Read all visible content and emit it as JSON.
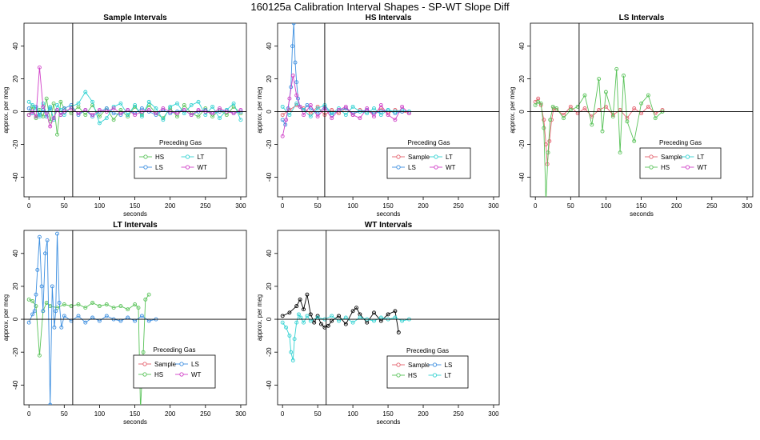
{
  "suptitle": "160125a   Calibration Interval Shapes - SP-WT Slope Diff",
  "colors": {
    "Sample": "#e4606d",
    "HS": "#5ac35a",
    "LS": "#3d8fe0",
    "LT": "#33d2d2",
    "WT": "#d040c8",
    "Extra": "#000000"
  },
  "chart_data": [
    {
      "type": "line",
      "title": "Sample Intervals",
      "xlabel": "seconds",
      "ylabel": "approx. per meg",
      "xlim": [
        -7,
        308
      ],
      "ylim": [
        -52,
        54
      ],
      "xticks": [
        0,
        50,
        100,
        150,
        200,
        250,
        300
      ],
      "yticks": [
        -40,
        -20,
        0,
        20,
        40
      ],
      "vline": 62,
      "legend_title": "Preceding Gas",
      "legend": [
        "HS",
        "LT",
        "LS",
        "WT"
      ],
      "series": [
        {
          "name": "HS",
          "color": "#5ac35a",
          "x": [
            0,
            5,
            10,
            15,
            20,
            25,
            30,
            35,
            40,
            45,
            50,
            60,
            70,
            80,
            90,
            100,
            110,
            120,
            130,
            140,
            150,
            160,
            170,
            180,
            190,
            200,
            210,
            220,
            230,
            240,
            250,
            260,
            270,
            280,
            290,
            300
          ],
          "y": [
            -2,
            3,
            -4,
            1,
            -3,
            8,
            -6,
            5,
            -14,
            6,
            2,
            -1,
            3,
            -2,
            4,
            -3,
            2,
            -5,
            1,
            -3,
            3,
            -2,
            4,
            -1,
            -4,
            2,
            -3,
            4,
            -1,
            -3,
            2,
            -3,
            1,
            -2,
            3,
            -1
          ]
        },
        {
          "name": "LS",
          "color": "#3d8fe0",
          "x": [
            0,
            5,
            10,
            15,
            20,
            25,
            30,
            35,
            40,
            45,
            50,
            60,
            70,
            80,
            90,
            100,
            110,
            120,
            130,
            140,
            150,
            160,
            170,
            180,
            190,
            200,
            210,
            220,
            230,
            240,
            250,
            260,
            270,
            280,
            290,
            300
          ],
          "y": [
            2,
            -1,
            3,
            -2,
            1,
            -3,
            2,
            -4,
            1,
            -2,
            2,
            4,
            -2,
            1,
            -3,
            0,
            2,
            -1,
            -2,
            1,
            -1,
            2,
            0,
            -2,
            1,
            -1,
            0,
            1,
            -2,
            0,
            1,
            -1,
            0,
            1,
            -1,
            0
          ]
        },
        {
          "name": "LT",
          "color": "#33d2d2",
          "x": [
            0,
            5,
            10,
            15,
            20,
            25,
            30,
            35,
            40,
            45,
            50,
            60,
            70,
            80,
            90,
            100,
            110,
            120,
            130,
            140,
            150,
            160,
            170,
            180,
            190,
            200,
            210,
            220,
            230,
            240,
            250,
            260,
            270,
            280,
            290,
            300
          ],
          "y": [
            6,
            4,
            2,
            -3,
            5,
            -1,
            3,
            -5,
            4,
            1,
            -2,
            3,
            5,
            12,
            6,
            -7,
            -4,
            3,
            5,
            -2,
            4,
            -3,
            6,
            2,
            -5,
            3,
            5,
            -1,
            4,
            6,
            -2,
            3,
            -4,
            1,
            5,
            -5
          ]
        },
        {
          "name": "WT",
          "color": "#d040c8",
          "x": [
            0,
            5,
            10,
            15,
            20,
            25,
            30,
            35,
            40,
            45,
            50,
            60,
            70,
            80,
            90,
            100,
            110,
            120,
            130,
            140,
            150,
            160,
            170,
            180,
            190,
            200,
            210,
            220,
            230,
            240,
            250,
            260,
            270,
            280,
            290,
            300
          ],
          "y": [
            -2,
            0,
            -3,
            27,
            3,
            -1,
            -9,
            -4,
            1,
            -2,
            0,
            2,
            -1,
            1,
            -2,
            1,
            0,
            2,
            -1,
            1,
            -2,
            0,
            1,
            -1,
            2,
            0,
            -1,
            1,
            -2,
            1,
            0,
            -1,
            2,
            0,
            -1,
            1
          ]
        }
      ]
    },
    {
      "type": "line",
      "title": "HS Intervals",
      "xlabel": "seconds",
      "ylabel": "approx. per meg",
      "xlim": [
        -7,
        308
      ],
      "ylim": [
        -52,
        54
      ],
      "xticks": [
        0,
        50,
        100,
        150,
        200,
        250,
        300
      ],
      "yticks": [
        -40,
        -20,
        0,
        20,
        40
      ],
      "vline": 60,
      "legend_title": "Preceding Gas",
      "legend": [
        "Sample",
        "LT",
        "LS",
        "WT"
      ],
      "series": [
        {
          "name": "Sample",
          "color": "#e4606d",
          "x": [
            0,
            10,
            20,
            30,
            40,
            50,
            60,
            70,
            80,
            90,
            100,
            110,
            120,
            130,
            140,
            150,
            160,
            170,
            180
          ],
          "y": [
            -2,
            1,
            4,
            2,
            -1,
            3,
            -2,
            1,
            -1,
            2,
            -2,
            1,
            0,
            -1,
            2,
            -1,
            1,
            0,
            -1
          ]
        },
        {
          "name": "LS",
          "color": "#3d8fe0",
          "x": [
            0,
            4,
            8,
            12,
            14,
            16,
            18,
            20,
            22,
            25,
            30,
            35,
            40,
            50,
            60,
            70,
            80,
            90,
            100,
            110,
            120,
            130,
            140,
            150,
            160,
            170,
            180
          ],
          "y": [
            -5,
            -8,
            2,
            15,
            40,
            54,
            30,
            18,
            8,
            3,
            1,
            4,
            2,
            -1,
            3,
            -2,
            1,
            2,
            -1,
            0,
            1,
            -1,
            0,
            1,
            -1,
            0,
            0
          ]
        },
        {
          "name": "LT",
          "color": "#33d2d2",
          "x": [
            0,
            10,
            20,
            30,
            40,
            50,
            60,
            70,
            80,
            90,
            100,
            110,
            120,
            130,
            140,
            150,
            160,
            170,
            180
          ],
          "y": [
            3,
            -2,
            5,
            1,
            -3,
            2,
            4,
            -1,
            2,
            -2,
            3,
            0,
            -1,
            2,
            -2,
            1,
            0,
            1,
            0
          ]
        },
        {
          "name": "WT",
          "color": "#d040c8",
          "x": [
            0,
            5,
            10,
            15,
            20,
            25,
            30,
            40,
            50,
            60,
            70,
            80,
            90,
            100,
            110,
            120,
            130,
            140,
            150,
            160,
            170,
            180
          ],
          "y": [
            -15,
            -5,
            8,
            22,
            10,
            3,
            -2,
            4,
            -3,
            2,
            -4,
            1,
            3,
            -2,
            -4,
            2,
            -3,
            4,
            -2,
            -5,
            3,
            -1
          ]
        }
      ]
    },
    {
      "type": "line",
      "title": "LS Intervals",
      "xlabel": "seconds",
      "ylabel": "approx. per meg",
      "xlim": [
        -7,
        308
      ],
      "ylim": [
        -52,
        54
      ],
      "xticks": [
        0,
        50,
        100,
        150,
        200,
        250,
        300
      ],
      "yticks": [
        -40,
        -20,
        0,
        20,
        40
      ],
      "vline": 62,
      "legend_title": "Preceding Gas",
      "legend": [
        "Sample",
        "LT",
        "HS",
        "WT"
      ],
      "series": [
        {
          "name": "Sample",
          "color": "#e4606d",
          "x": [
            0,
            4,
            8,
            12,
            15,
            17,
            20,
            23,
            26,
            30,
            40,
            50,
            60,
            70,
            80,
            90,
            100,
            110,
            120,
            130,
            140,
            150,
            160,
            170,
            180
          ],
          "y": [
            6,
            8,
            4,
            -5,
            -20,
            -32,
            -18,
            -5,
            2,
            1,
            -2,
            3,
            -1,
            2,
            -3,
            1,
            3,
            -2,
            1,
            -4,
            2,
            -1,
            3,
            -1,
            1
          ]
        },
        {
          "name": "HS",
          "color": "#5ac35a",
          "x": [
            0,
            4,
            8,
            12,
            15,
            18,
            21,
            25,
            30,
            40,
            50,
            60,
            70,
            80,
            90,
            95,
            100,
            110,
            115,
            120,
            125,
            130,
            140,
            150,
            160,
            170,
            180
          ],
          "y": [
            4,
            6,
            5,
            -10,
            -55,
            -25,
            -5,
            3,
            2,
            -4,
            1,
            3,
            10,
            -8,
            20,
            -12,
            12,
            -3,
            26,
            -25,
            22,
            -6,
            -18,
            5,
            10,
            -4,
            0
          ]
        }
      ]
    },
    {
      "type": "line",
      "title": "LT Intervals",
      "xlabel": "seconds",
      "ylabel": "approx. per meg",
      "xlim": [
        -7,
        308
      ],
      "ylim": [
        -52,
        54
      ],
      "xticks": [
        0,
        50,
        100,
        150,
        200,
        250,
        300
      ],
      "yticks": [
        -40,
        -20,
        0,
        20,
        40
      ],
      "vline": 62,
      "legend_title": "Preceding Gas",
      "legend": [
        "Sample",
        "LS",
        "HS",
        "WT"
      ],
      "series": [
        {
          "name": "HS",
          "color": "#5ac35a",
          "x": [
            0,
            5,
            10,
            15,
            20,
            25,
            30,
            40,
            50,
            60,
            70,
            80,
            90,
            100,
            110,
            120,
            130,
            140,
            150,
            155,
            158,
            162,
            165,
            170
          ],
          "y": [
            12,
            11,
            8,
            -22,
            5,
            10,
            8,
            7,
            9,
            8,
            9,
            7,
            10,
            8,
            9,
            7,
            8,
            6,
            9,
            7,
            -55,
            -20,
            12,
            15
          ]
        },
        {
          "name": "LS",
          "color": "#3d8fe0",
          "x": [
            0,
            5,
            8,
            10,
            12,
            15,
            18,
            20,
            23,
            26,
            30,
            33,
            36,
            38,
            40,
            43,
            46,
            50,
            60,
            70,
            80,
            90,
            100,
            110,
            120,
            130,
            140,
            150,
            160,
            170,
            180
          ],
          "y": [
            -2,
            3,
            5,
            15,
            30,
            50,
            20,
            5,
            40,
            48,
            -52,
            20,
            -5,
            5,
            52,
            10,
            -5,
            2,
            -1,
            2,
            -2,
            1,
            -1,
            2,
            0,
            -1,
            1,
            -1,
            2,
            -1,
            0
          ]
        }
      ]
    },
    {
      "type": "line",
      "title": "WT Intervals",
      "xlabel": "seconds",
      "ylabel": "approx. per meg",
      "xlim": [
        -7,
        308
      ],
      "ylim": [
        -52,
        54
      ],
      "xticks": [
        0,
        50,
        100,
        150,
        200,
        250,
        300
      ],
      "yticks": [
        -40,
        -20,
        0,
        20,
        40
      ],
      "vline": 62,
      "legend_title": "Preceding Gas",
      "legend": [
        "Sample",
        "LS",
        "HS",
        "LT"
      ],
      "series": [
        {
          "name": "Extra",
          "color": "#000000",
          "x": [
            0,
            10,
            20,
            25,
            30,
            35,
            40,
            45,
            50,
            55,
            60,
            65,
            70,
            80,
            90,
            100,
            105,
            110,
            120,
            130,
            140,
            150,
            160,
            165
          ],
          "y": [
            2,
            4,
            8,
            12,
            6,
            15,
            3,
            -2,
            2,
            -3,
            -5,
            -4,
            -1,
            2,
            -3,
            5,
            7,
            3,
            -2,
            4,
            -1,
            3,
            5,
            -8
          ]
        },
        {
          "name": "LT",
          "color": "#33d2d2",
          "x": [
            0,
            5,
            10,
            12,
            15,
            17,
            20,
            23,
            26,
            30,
            35,
            40,
            50,
            60,
            70,
            80,
            90,
            100,
            110,
            120,
            130,
            140,
            150,
            160,
            170,
            180
          ],
          "y": [
            -2,
            -5,
            -10,
            -20,
            -25,
            -12,
            -2,
            3,
            1,
            -2,
            2,
            -1,
            1,
            0,
            2,
            -1,
            1,
            -2,
            1,
            0,
            -1,
            1,
            0,
            1,
            -1,
            0
          ]
        }
      ]
    }
  ]
}
